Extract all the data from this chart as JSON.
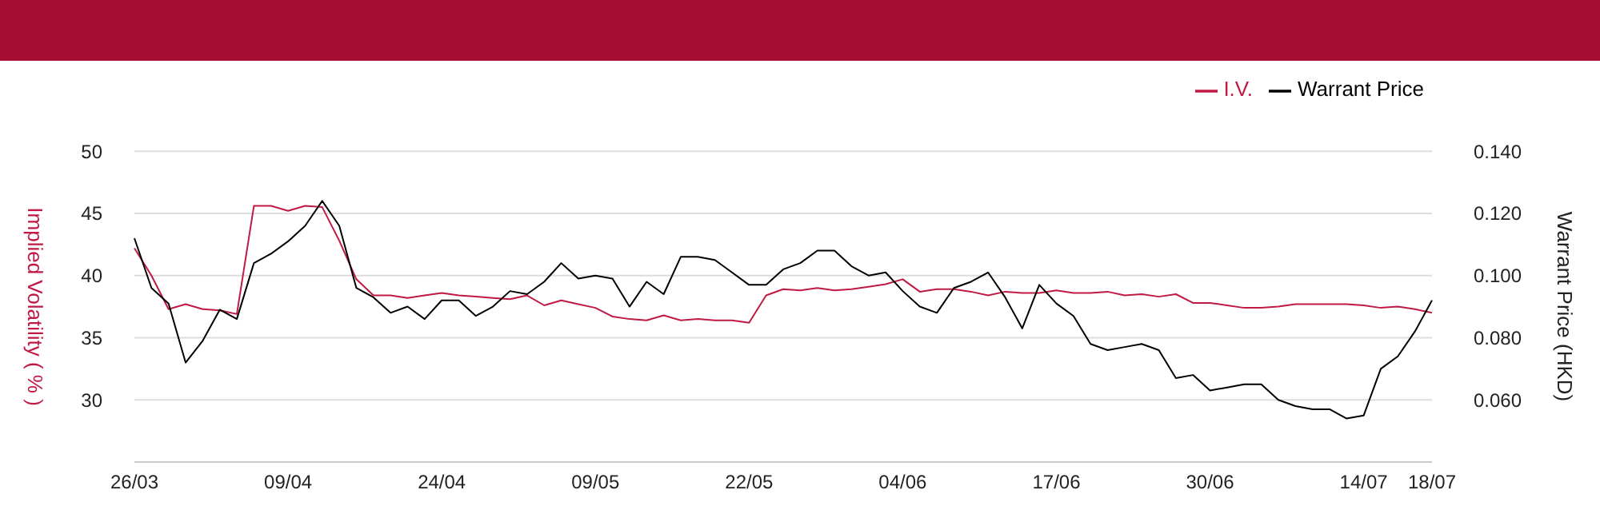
{
  "chart_data": {
    "type": "line",
    "ylabel": "Implied Volatility ( % )",
    "y2label": "Warrant Price (HKD)",
    "categories": [
      "26/03",
      null,
      null,
      null,
      null,
      null,
      null,
      null,
      null,
      "09/04",
      null,
      null,
      null,
      null,
      null,
      null,
      null,
      null,
      "24/04",
      null,
      null,
      null,
      null,
      null,
      null,
      null,
      null,
      "09/05",
      null,
      null,
      null,
      null,
      null,
      null,
      null,
      null,
      "22/05",
      null,
      null,
      null,
      null,
      null,
      null,
      null,
      null,
      "04/06",
      null,
      null,
      null,
      null,
      null,
      null,
      null,
      null,
      "17/06",
      null,
      null,
      null,
      null,
      null,
      null,
      null,
      null,
      "30/06",
      null,
      null,
      null,
      null,
      null,
      null,
      null,
      null,
      "14/07",
      null,
      null,
      null,
      "18/07"
    ],
    "series": [
      {
        "name": "I.V.",
        "color": "#c01a44",
        "values": [
          42.2,
          40.0,
          37.3,
          37.7,
          37.3,
          37.2,
          36.9,
          45.6,
          45.6,
          45.2,
          45.6,
          45.5,
          42.8,
          39.7,
          38.4,
          38.4,
          38.2,
          38.4,
          38.6,
          38.4,
          38.3,
          38.2,
          38.1,
          38.4,
          37.6,
          38.0,
          37.7,
          37.4,
          36.7,
          36.5,
          36.4,
          36.8,
          36.4,
          36.5,
          36.4,
          36.4,
          36.2,
          38.4,
          38.9,
          38.8,
          39.0,
          38.8,
          38.9,
          39.1,
          39.3,
          39.7,
          38.7,
          38.9,
          38.9,
          38.7,
          38.4,
          38.7,
          38.6,
          38.6,
          38.8,
          38.6,
          38.6,
          38.7,
          38.4,
          38.5,
          38.3,
          38.5,
          37.8,
          37.8,
          37.6,
          37.4,
          37.4,
          37.5,
          37.7,
          37.7,
          37.7,
          37.7,
          37.6,
          37.4,
          37.5,
          37.3,
          37.0
        ]
      },
      {
        "name": "Warrant Price",
        "color": "#000000",
        "axis": "y2",
        "values": [
          0.112,
          0.096,
          0.091,
          0.072,
          0.079,
          0.089,
          0.086,
          0.104,
          0.107,
          0.111,
          0.116,
          0.124,
          0.116,
          0.096,
          0.093,
          0.088,
          0.09,
          0.086,
          0.092,
          0.092,
          0.087,
          0.09,
          0.095,
          0.094,
          0.098,
          0.104,
          0.099,
          0.1,
          0.099,
          0.09,
          0.098,
          0.094,
          0.106,
          0.106,
          0.105,
          0.101,
          0.097,
          0.097,
          0.102,
          0.104,
          0.108,
          0.108,
          0.103,
          0.1,
          0.101,
          0.095,
          0.09,
          0.088,
          0.096,
          0.098,
          0.101,
          0.093,
          0.083,
          0.097,
          0.091,
          0.087,
          0.078,
          0.076,
          0.077,
          0.078,
          0.076,
          0.067,
          0.068,
          0.063,
          0.064,
          0.065,
          0.065,
          0.06,
          0.058,
          0.057,
          0.057,
          0.054,
          0.055,
          0.07,
          0.074,
          0.082,
          0.092
        ]
      }
    ],
    "ylim": [
      25,
      50
    ],
    "yticks": [
      30,
      35,
      40,
      45,
      50
    ],
    "y2lim": [
      0.04,
      0.14
    ],
    "y2ticks": [
      {
        "value": 0.06,
        "label": "0.060"
      },
      {
        "value": 0.08,
        "label": "0.080"
      },
      {
        "value": 0.1,
        "label": "0.100"
      },
      {
        "value": 0.12,
        "label": "0.120"
      },
      {
        "value": 0.14,
        "label": "0.140"
      }
    ],
    "grid": "y",
    "legend": "top right",
    "marker": "none",
    "line_style": "solid"
  }
}
